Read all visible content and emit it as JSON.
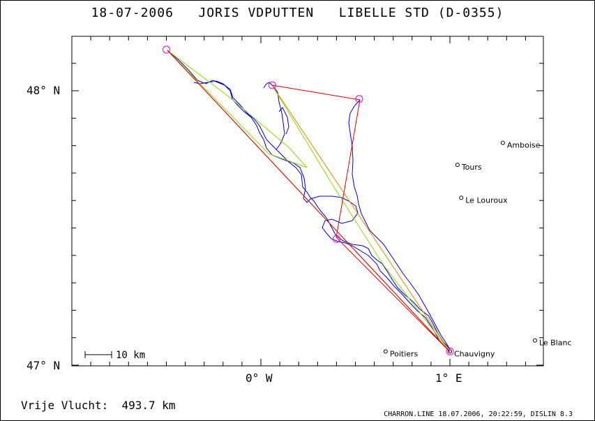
{
  "header": {
    "date": "18-07-2006",
    "pilot": "JORIS VDPUTTEN",
    "glider": "LIBELLE STD (D-0355)"
  },
  "axes": {
    "lat_labels": [
      "48° N",
      "47° N"
    ],
    "lon_labels": [
      "0° W",
      "1° E"
    ]
  },
  "map": {
    "towns": [
      {
        "name": "Amboise",
        "lon": 1.28,
        "lat": 47.81
      },
      {
        "name": "Tours",
        "lon": 1.04,
        "lat": 47.73
      },
      {
        "name": "Le Louroux",
        "lon": 1.06,
        "lat": 47.61
      },
      {
        "name": "Poitiers",
        "lon": 0.66,
        "lat": 47.05
      },
      {
        "name": "Chauvigny",
        "lon": 1.0,
        "lat": 47.05
      },
      {
        "name": "Le Blanc",
        "lon": 1.45,
        "lat": 47.09
      }
    ],
    "turnpoints": [
      {
        "lon": -0.5,
        "lat": 48.15
      },
      {
        "lon": 0.06,
        "lat": 48.02
      },
      {
        "lon": 0.52,
        "lat": 47.97
      },
      {
        "lon": 0.4,
        "lat": 47.46
      },
      {
        "lon": 1.0,
        "lat": 47.05
      }
    ],
    "scale_label": "10 km",
    "colors": {
      "track": "#0000cc",
      "task": "#dd0000",
      "optimized": "#88dd00",
      "free_line": "#dd8800",
      "turnpoint": "#ee00ee"
    }
  },
  "footer": {
    "distance_label": "Vrije Vlucht:",
    "distance_value": "493.7 km",
    "source": "CHARRON.LINE 18.07.2006, 20:22:59, DISLIN 8.3"
  }
}
